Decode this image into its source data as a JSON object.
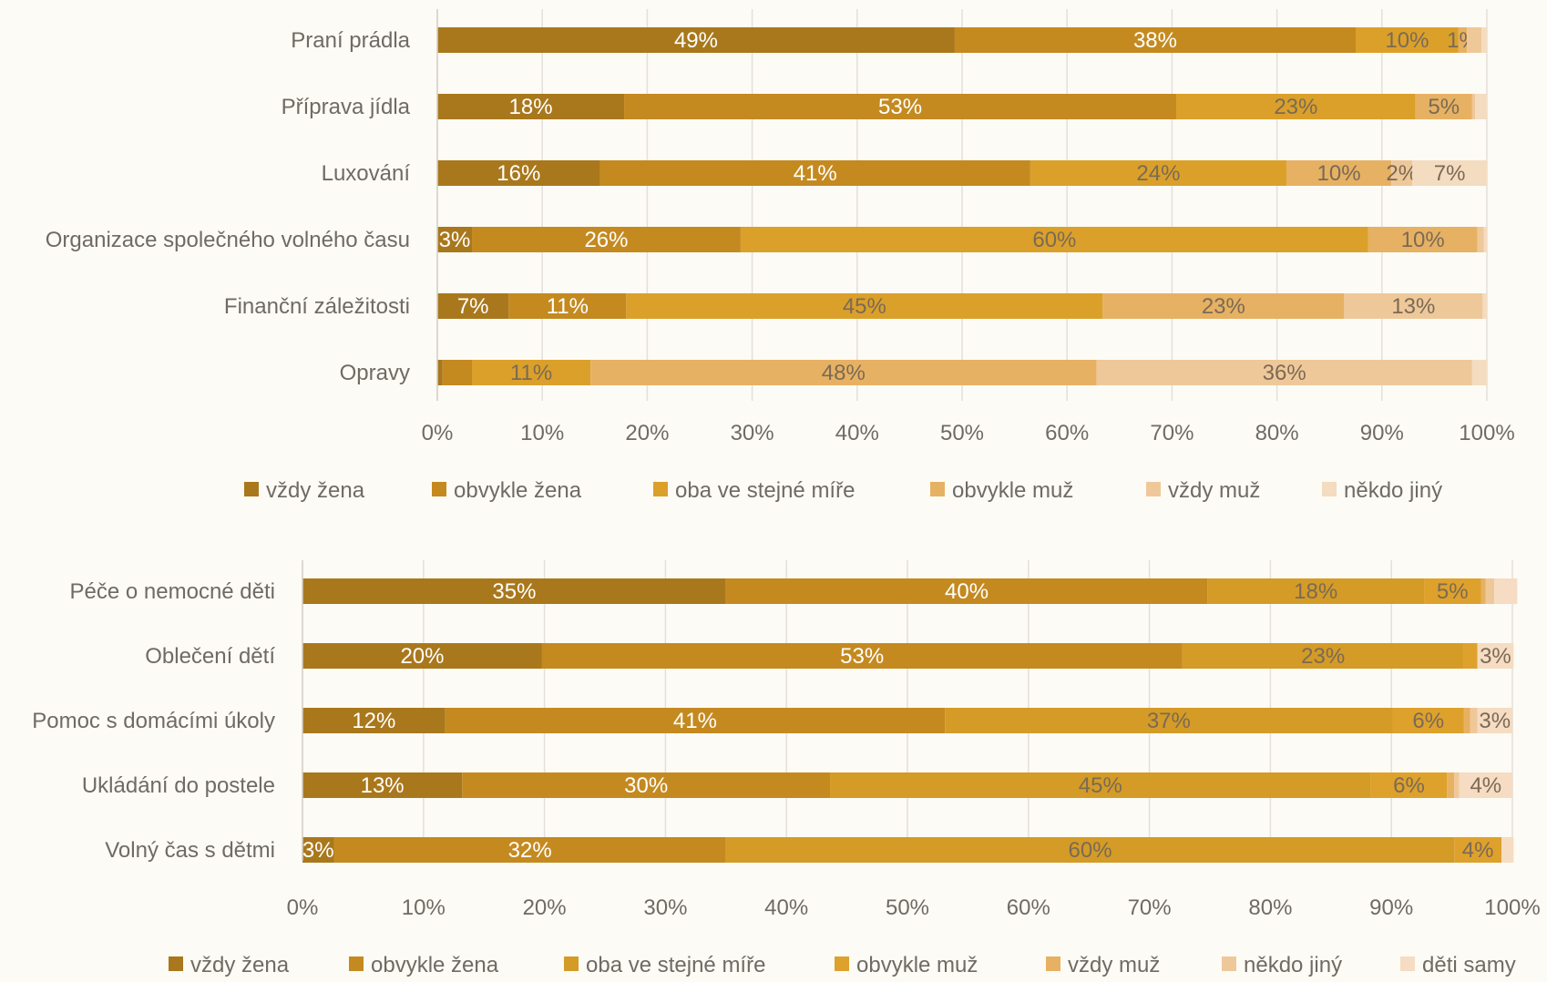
{
  "colors": {
    "background": "#fdfbf5",
    "grid": "#e3e0da",
    "text": "#6f6a64",
    "label_light": "#ffffff",
    "label_dark": "#7a6a55"
  },
  "chart_data": [
    {
      "type": "bar",
      "orientation": "horizontal",
      "stacked": true,
      "percent": true,
      "xlim": [
        0,
        100
      ],
      "xticks": [
        "0%",
        "10%",
        "20%",
        "30%",
        "40%",
        "50%",
        "60%",
        "70%",
        "80%",
        "90%",
        "100%"
      ],
      "legend_position": "bottom",
      "grid": true,
      "categories": [
        "Praní prádla",
        "Příprava jídla",
        "Luxování",
        "Organizace společného volného času",
        "Finanční záležitosti",
        "Opravy"
      ],
      "series": [
        {
          "name": "vždy žena",
          "color": "#a9781c",
          "values": [
            49.3,
            17.8,
            15.5,
            3.3,
            6.8,
            0.5
          ]
        },
        {
          "name": "obvykle žena",
          "color": "#c48a20",
          "values": [
            38.2,
            52.6,
            41.0,
            25.6,
            11.2,
            2.8
          ]
        },
        {
          "name": "oba ve stejné míře",
          "color": "#dba02a",
          "values": [
            9.8,
            22.8,
            24.4,
            59.8,
            45.4,
            11.3
          ]
        },
        {
          "name": "obvykle muž",
          "color": "#e7b163",
          "values": [
            0.8,
            5.4,
            10.0,
            10.4,
            23.0,
            48.2
          ]
        },
        {
          "name": "vždy muž",
          "color": "#efc89a",
          "values": [
            1.4,
            0.3,
            2.0,
            0.6,
            13.2,
            35.8
          ]
        },
        {
          "name": "někdo jiný",
          "color": "#f4dcc0",
          "values": [
            0.5,
            1.1,
            7.1,
            0.3,
            0.4,
            1.4
          ]
        }
      ],
      "data_labels": [
        [
          "49%",
          "38%",
          "10%",
          "1%",
          "",
          ""
        ],
        [
          "18%",
          "53%",
          "23%",
          "5%",
          "",
          ""
        ],
        [
          "16%",
          "41%",
          "24%",
          "10%",
          "2%",
          "7%"
        ],
        [
          "3%",
          "26%",
          "60%",
          "10%",
          "",
          ""
        ],
        [
          "7%",
          "11%",
          "45%",
          "23%",
          "13%",
          ""
        ],
        [
          "",
          "",
          "11%",
          "48%",
          "36%",
          ""
        ]
      ]
    },
    {
      "type": "bar",
      "orientation": "horizontal",
      "stacked": true,
      "percent": true,
      "xlim": [
        0,
        100
      ],
      "xticks": [
        "0%",
        "10%",
        "20%",
        "30%",
        "40%",
        "50%",
        "60%",
        "70%",
        "80%",
        "90%",
        "100%"
      ],
      "legend_position": "bottom",
      "grid": true,
      "categories": [
        "Péče o nemocné děti",
        "Oblečení dětí",
        "Pomoc s domácími úkoly",
        "Ukládání do postele",
        "Volný čas s dětmi"
      ],
      "series": [
        {
          "name": "vždy žena",
          "color": "#a9781c",
          "values": [
            35.0,
            19.8,
            11.8,
            13.2,
            2.6
          ]
        },
        {
          "name": "obvykle žena",
          "color": "#c48a20",
          "values": [
            39.8,
            52.9,
            41.3,
            30.4,
            32.4
          ]
        },
        {
          "name": "oba ve stejné míře",
          "color": "#d49b27",
          "values": [
            17.9,
            23.3,
            37.0,
            44.7,
            60.2
          ]
        },
        {
          "name": "obvykle muž",
          "color": "#dea12c",
          "values": [
            4.7,
            1.1,
            5.9,
            6.3,
            3.9
          ]
        },
        {
          "name": "vždy muž",
          "color": "#e7b163",
          "values": [
            0.4,
            0.0,
            0.5,
            0.6,
            0.0
          ]
        },
        {
          "name": "někdo jiný",
          "color": "#efc89a",
          "values": [
            0.7,
            0.0,
            0.6,
            0.4,
            0.0
          ]
        },
        {
          "name": "děti samy",
          "color": "#f5dcc2",
          "values": [
            1.9,
            3.0,
            2.9,
            4.4,
            1.0
          ]
        }
      ],
      "data_labels": [
        [
          "35%",
          "40%",
          "18%",
          "5%",
          "",
          "",
          ""
        ],
        [
          "20%",
          "53%",
          "23%",
          "",
          "",
          "",
          "3%"
        ],
        [
          "12%",
          "41%",
          "37%",
          "6%",
          "",
          "",
          "3%"
        ],
        [
          "13%",
          "30%",
          "45%",
          "6%",
          "",
          "",
          "4%"
        ],
        [
          "3%",
          "32%",
          "60%",
          "4%",
          "",
          "",
          ""
        ]
      ]
    }
  ]
}
